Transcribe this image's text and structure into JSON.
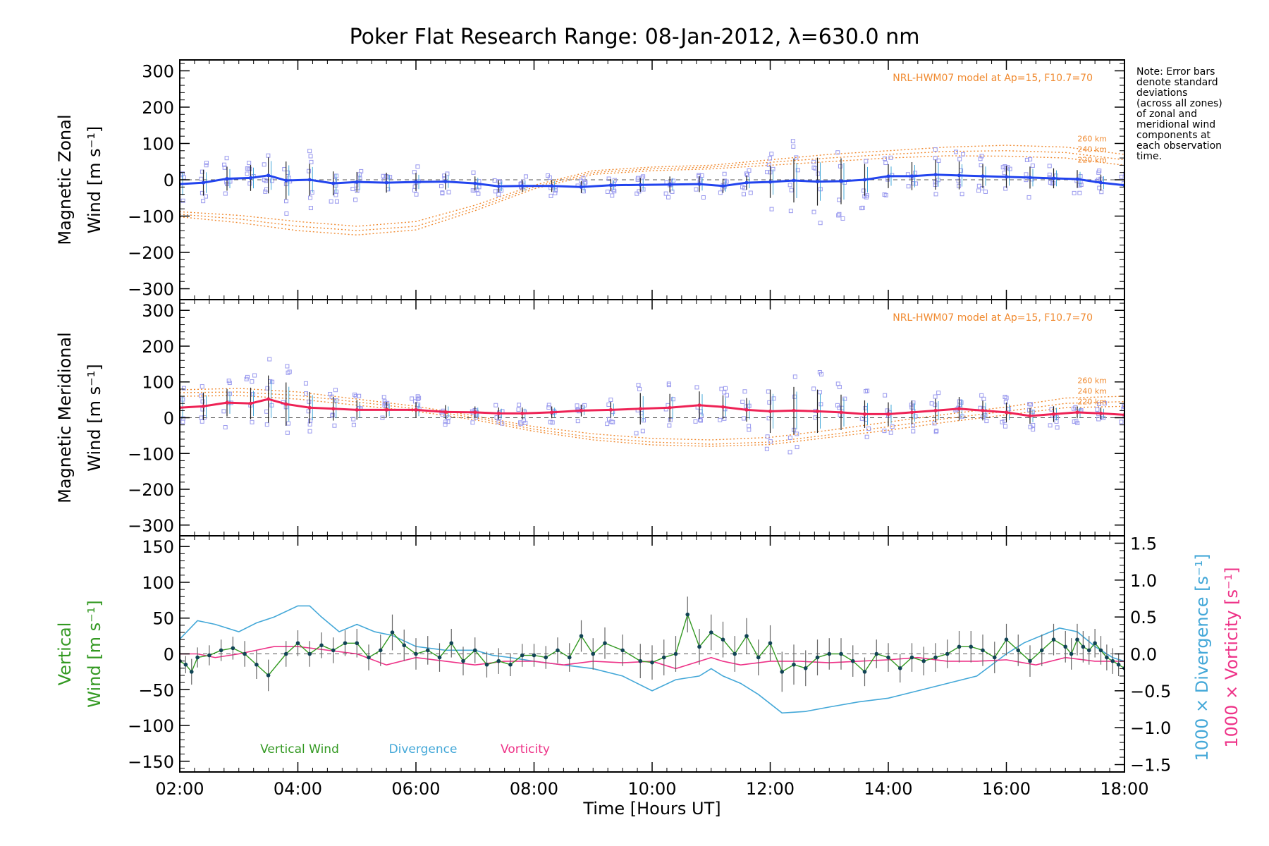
{
  "title": "Poker Flat Research Range: 08-Jan-2012, λ=630.0 nm",
  "note_lines": [
    "Note: Error bars",
    "denote standard",
    "deviations",
    "(across all zones)",
    "of zonal and",
    "meridional wind",
    "components at",
    "each observation",
    "time."
  ],
  "model_label": "NRL-HWM07 model at Ap=15, F10.7=70",
  "altitude_labels": [
    "260 km",
    "240 km",
    "220 km"
  ],
  "xlabel": "Time [Hours UT]",
  "x_ticks": [
    "02:00",
    "04:00",
    "06:00",
    "08:00",
    "10:00",
    "12:00",
    "14:00",
    "16:00",
    "18:00"
  ],
  "colors": {
    "zonal": "#2244ee",
    "meridional": "#ee2255",
    "vertical": "#339922",
    "divergence": "#44a8d8",
    "vorticity": "#ee3388",
    "model": "#f08a30",
    "scatter": "#9999ee",
    "errorbar": "#000000"
  },
  "chart_data": [
    {
      "type": "line",
      "name": "zonal",
      "ylabel_lines": [
        "Magnetic Zonal",
        "Wind [m s⁻¹]"
      ],
      "xlim": [
        2,
        18
      ],
      "ylim": [
        -330,
        330
      ],
      "y_ticks": [
        300,
        200,
        100,
        0,
        -100,
        -200,
        -300
      ],
      "x": [
        2.0,
        2.4,
        2.8,
        3.2,
        3.5,
        3.8,
        4.2,
        4.6,
        5.0,
        5.5,
        6.0,
        6.5,
        7.0,
        7.4,
        7.8,
        8.3,
        8.8,
        9.3,
        9.8,
        10.3,
        10.8,
        11.2,
        11.6,
        12.0,
        12.4,
        12.8,
        13.2,
        13.6,
        14.0,
        14.4,
        14.8,
        15.2,
        15.6,
        16.0,
        16.4,
        16.8,
        17.2,
        17.6,
        18.0
      ],
      "values": [
        -12,
        -8,
        3,
        5,
        12,
        -2,
        0,
        -10,
        -6,
        -8,
        -6,
        -5,
        -10,
        -18,
        -17,
        -17,
        -20,
        -15,
        -14,
        -13,
        -12,
        -17,
        -8,
        -6,
        -2,
        -5,
        -4,
        0,
        10,
        10,
        14,
        12,
        10,
        8,
        6,
        4,
        2,
        -8,
        -15
      ],
      "scatter_spread": [
        70,
        65,
        60,
        65,
        90,
        95,
        80,
        60,
        50,
        50,
        45,
        40,
        35,
        30,
        30,
        30,
        30,
        30,
        35,
        40,
        40,
        35,
        35,
        80,
        110,
        120,
        115,
        80,
        60,
        70,
        75,
        70,
        60,
        55,
        55,
        50,
        45,
        40,
        40
      ],
      "model_series": [
        {
          "x": [
            2,
            3,
            4,
            5,
            6,
            7,
            8,
            9,
            10,
            11,
            12,
            13,
            14,
            15,
            16,
            17,
            18
          ],
          "values": [
            -88,
            -98,
            -115,
            -128,
            -115,
            -70,
            -15,
            25,
            35,
            40,
            55,
            70,
            80,
            90,
            95,
            90,
            70
          ]
        },
        {
          "x": [
            2,
            3,
            4,
            5,
            6,
            7,
            8,
            9,
            10,
            11,
            12,
            13,
            14,
            15,
            16,
            17,
            18
          ],
          "values": [
            -95,
            -108,
            -128,
            -140,
            -128,
            -78,
            -20,
            20,
            30,
            35,
            48,
            60,
            70,
            78,
            80,
            75,
            55
          ]
        },
        {
          "x": [
            2,
            3,
            4,
            5,
            6,
            7,
            8,
            9,
            10,
            11,
            12,
            13,
            14,
            15,
            16,
            17,
            18
          ],
          "values": [
            -102,
            -118,
            -140,
            -152,
            -138,
            -85,
            -25,
            15,
            25,
            30,
            40,
            50,
            60,
            66,
            65,
            60,
            40
          ]
        }
      ]
    },
    {
      "type": "line",
      "name": "meridional",
      "ylabel_lines": [
        "Magnetic Meridional",
        "Wind [m s⁻¹]"
      ],
      "xlim": [
        2,
        18
      ],
      "ylim": [
        -330,
        330
      ],
      "y_ticks": [
        300,
        200,
        100,
        0,
        -100,
        -200,
        -300
      ],
      "x": [
        2.0,
        2.4,
        2.8,
        3.2,
        3.5,
        3.8,
        4.2,
        4.6,
        5.0,
        5.5,
        6.0,
        6.5,
        7.0,
        7.4,
        7.8,
        8.3,
        8.8,
        9.3,
        9.8,
        10.3,
        10.8,
        11.2,
        11.6,
        12.0,
        12.4,
        12.8,
        13.2,
        13.6,
        14.0,
        14.4,
        14.8,
        15.2,
        15.6,
        16.0,
        16.4,
        16.8,
        17.2,
        17.6,
        18.0
      ],
      "values": [
        28,
        32,
        42,
        40,
        52,
        38,
        28,
        25,
        22,
        22,
        22,
        16,
        15,
        12,
        12,
        15,
        20,
        22,
        25,
        28,
        35,
        30,
        22,
        18,
        20,
        18,
        15,
        10,
        10,
        15,
        20,
        25,
        20,
        15,
        5,
        10,
        15,
        12,
        8
      ],
      "scatter_spread": [
        70,
        70,
        70,
        80,
        120,
        110,
        80,
        60,
        50,
        40,
        40,
        35,
        30,
        30,
        30,
        30,
        30,
        40,
        80,
        70,
        70,
        60,
        60,
        110,
        120,
        110,
        90,
        70,
        60,
        60,
        60,
        60,
        50,
        50,
        40,
        40,
        30,
        30,
        30
      ],
      "model_series": [
        {
          "x": [
            2,
            3,
            4,
            5,
            6,
            7,
            8,
            9,
            10,
            11,
            12,
            13,
            14,
            15,
            16,
            17,
            18
          ],
          "values": [
            78,
            82,
            72,
            52,
            32,
            5,
            -25,
            -45,
            -58,
            -62,
            -55,
            -35,
            -12,
            10,
            30,
            55,
            60
          ]
        },
        {
          "x": [
            2,
            3,
            4,
            5,
            6,
            7,
            8,
            9,
            10,
            11,
            12,
            13,
            14,
            15,
            16,
            17,
            18
          ],
          "values": [
            70,
            72,
            62,
            44,
            25,
            0,
            -32,
            -55,
            -68,
            -74,
            -68,
            -48,
            -25,
            -2,
            18,
            40,
            45
          ]
        },
        {
          "x": [
            2,
            3,
            4,
            5,
            6,
            7,
            8,
            9,
            10,
            11,
            12,
            13,
            14,
            15,
            16,
            17,
            18
          ],
          "values": [
            60,
            62,
            52,
            35,
            18,
            -6,
            -38,
            -62,
            -76,
            -80,
            -75,
            -55,
            -35,
            -12,
            8,
            28,
            32
          ]
        }
      ]
    },
    {
      "type": "line",
      "name": "vertical",
      "ylabel_lines": [
        "Vertical",
        "Wind [m s⁻¹]"
      ],
      "y2label_divergence": "1000 × Divergence [s⁻¹]",
      "y2label_vorticity": "1000 × Vorticity [s⁻¹]",
      "xlim": [
        2,
        18
      ],
      "ylim": [
        -165,
        165
      ],
      "y2lim": [
        -1.6,
        1.6
      ],
      "y_ticks": [
        150,
        100,
        50,
        0,
        -50,
        -100,
        -150
      ],
      "y2_ticks": [
        1.5,
        1.0,
        0.5,
        0.0,
        -0.5,
        -1.0,
        -1.5
      ],
      "legend": [
        "Vertical Wind",
        "Divergence",
        "Vorticity"
      ],
      "x": [
        2.0,
        2.1,
        2.2,
        2.3,
        2.5,
        2.7,
        2.9,
        3.1,
        3.3,
        3.5,
        3.8,
        4.0,
        4.2,
        4.4,
        4.6,
        4.8,
        5.0,
        5.2,
        5.4,
        5.6,
        5.8,
        6.0,
        6.2,
        6.4,
        6.6,
        6.8,
        7.0,
        7.2,
        7.4,
        7.6,
        7.8,
        8.0,
        8.2,
        8.4,
        8.6,
        8.8,
        9.0,
        9.2,
        9.5,
        9.8,
        10.0,
        10.2,
        10.4,
        10.6,
        10.8,
        11.0,
        11.2,
        11.4,
        11.6,
        11.8,
        12.0,
        12.2,
        12.4,
        12.6,
        12.8,
        13.0,
        13.2,
        13.4,
        13.6,
        13.8,
        14.0,
        14.2,
        14.4,
        14.6,
        14.8,
        15.0,
        15.2,
        15.4,
        15.6,
        15.8,
        16.0,
        16.2,
        16.4,
        16.6,
        16.8,
        17.0,
        17.1,
        17.2,
        17.3,
        17.4,
        17.5,
        17.6,
        17.7,
        17.8,
        17.9,
        18.0
      ],
      "values": [
        -10,
        -15,
        -25,
        -5,
        -2,
        5,
        8,
        0,
        -15,
        -30,
        0,
        15,
        0,
        12,
        5,
        15,
        15,
        -5,
        5,
        30,
        12,
        0,
        5,
        -5,
        15,
        -10,
        5,
        -15,
        -10,
        -15,
        -2,
        -2,
        -5,
        5,
        -5,
        25,
        0,
        15,
        5,
        -10,
        -12,
        -5,
        0,
        55,
        10,
        30,
        20,
        0,
        25,
        -5,
        15,
        -25,
        -15,
        -20,
        -5,
        0,
        0,
        -10,
        -25,
        0,
        -5,
        -20,
        -5,
        -10,
        -5,
        0,
        10,
        10,
        5,
        -5,
        20,
        5,
        -10,
        5,
        20,
        10,
        0,
        20,
        10,
        5,
        15,
        5,
        -5,
        -10,
        -15,
        -20
      ],
      "error": [
        15,
        12,
        18,
        14,
        14,
        15,
        16,
        18,
        20,
        22,
        18,
        18,
        18,
        18,
        18,
        18,
        20,
        18,
        22,
        25,
        22,
        22,
        20,
        20,
        20,
        20,
        18,
        18,
        18,
        16,
        16,
        16,
        16,
        18,
        20,
        22,
        22,
        22,
        22,
        24,
        24,
        25,
        25,
        25,
        25,
        25,
        25,
        25,
        25,
        25,
        25,
        28,
        28,
        25,
        25,
        22,
        22,
        22,
        20,
        20,
        20,
        20,
        20,
        20,
        20,
        20,
        22,
        22,
        22,
        22,
        22,
        22,
        22,
        22,
        22,
        22,
        22,
        22,
        22,
        20,
        20,
        20,
        18,
        18,
        16,
        16
      ],
      "divergence": {
        "x": [
          2.0,
          2.3,
          2.6,
          3.0,
          3.3,
          3.6,
          4.0,
          4.2,
          4.4,
          4.7,
          5.0,
          5.3,
          5.6,
          6.0,
          6.5,
          7.0,
          7.3,
          7.6,
          8.0,
          8.5,
          9.0,
          9.5,
          10.0,
          10.4,
          10.8,
          11.0,
          11.2,
          11.5,
          11.8,
          12.2,
          12.6,
          13.0,
          13.5,
          14.0,
          14.5,
          15.0,
          15.5,
          16.0,
          16.3,
          16.6,
          16.9,
          17.2,
          17.5,
          17.8,
          18.0
        ],
        "values": [
          0.2,
          0.45,
          0.4,
          0.3,
          0.42,
          0.5,
          0.65,
          0.65,
          0.5,
          0.3,
          0.4,
          0.3,
          0.25,
          0.1,
          0.05,
          0.05,
          -0.02,
          -0.05,
          -0.1,
          -0.15,
          -0.2,
          -0.3,
          -0.5,
          -0.35,
          -0.3,
          -0.2,
          -0.3,
          -0.4,
          -0.55,
          -0.8,
          -0.78,
          -0.72,
          -0.65,
          -0.6,
          -0.5,
          -0.4,
          -0.3,
          0.0,
          0.15,
          0.25,
          0.35,
          0.3,
          0.1,
          -0.05,
          -0.1
        ]
      },
      "vorticity": {
        "x": [
          2.0,
          2.3,
          2.6,
          3.0,
          3.3,
          3.6,
          4.0,
          4.5,
          5.0,
          5.5,
          6.0,
          6.5,
          7.0,
          7.5,
          8.0,
          8.5,
          9.0,
          9.5,
          10.0,
          10.4,
          10.8,
          11.0,
          11.2,
          11.5,
          12.0,
          12.5,
          13.0,
          13.5,
          14.0,
          14.5,
          15.0,
          15.5,
          16.0,
          16.5,
          17.0,
          17.5,
          18.0
        ],
        "values": [
          0.0,
          0.0,
          -0.05,
          0.0,
          0.05,
          0.1,
          0.1,
          0.05,
          0.0,
          -0.15,
          -0.05,
          -0.1,
          -0.15,
          -0.1,
          -0.1,
          -0.15,
          -0.1,
          -0.12,
          -0.1,
          -0.2,
          -0.1,
          -0.05,
          -0.1,
          -0.15,
          -0.1,
          -0.1,
          -0.12,
          -0.1,
          -0.08,
          -0.05,
          -0.1,
          -0.1,
          -0.08,
          -0.15,
          -0.05,
          -0.1,
          -0.1
        ]
      }
    }
  ]
}
